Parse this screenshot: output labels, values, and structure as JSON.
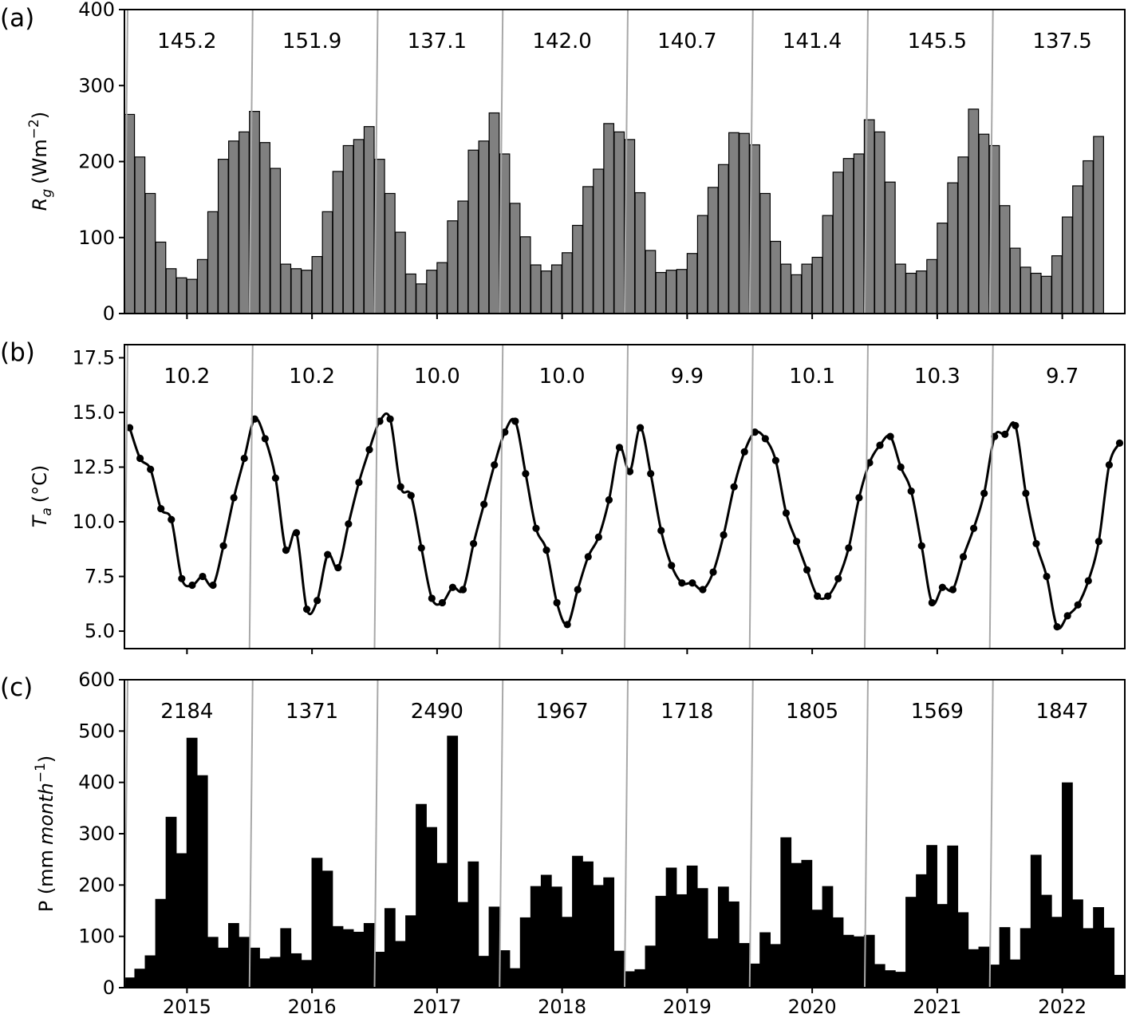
{
  "chart_data": [
    {
      "type": "bar",
      "panel_label": "(a)",
      "ylabel_main": "R",
      "ylabel_sub": "g",
      "ylabel_unit": "(Wm",
      "ylabel_sup": "−2",
      "ylabel_close": ")",
      "ylim": [
        0,
        400
      ],
      "yticks": [
        0,
        100,
        200,
        300,
        400
      ],
      "bar_color": "#808080",
      "start_year": 2014.5,
      "values": [
        262,
        206,
        158,
        94,
        59,
        47,
        45,
        71,
        134,
        203,
        227,
        239,
        266,
        225,
        191,
        65,
        59,
        57,
        75,
        134,
        187,
        221,
        229,
        246,
        203,
        158,
        107,
        52,
        39,
        57,
        67,
        122,
        148,
        215,
        227,
        264,
        210,
        145,
        101,
        64,
        56,
        64,
        80,
        116,
        167,
        190,
        250,
        239,
        229,
        159,
        83,
        54,
        57,
        58,
        79,
        129,
        166,
        196,
        238,
        237,
        222,
        158,
        95,
        65,
        51,
        65,
        74,
        129,
        186,
        204,
        210,
        255,
        239,
        173,
        65,
        53,
        56,
        71,
        119,
        172,
        206,
        269,
        236,
        221,
        142,
        86,
        61,
        53,
        49,
        76,
        127,
        168,
        201,
        233
      ],
      "annotations": [
        "145.2",
        "151.9",
        "137.1",
        "142.0",
        "140.7",
        "141.4",
        "145.5",
        "137.5"
      ]
    },
    {
      "type": "line",
      "panel_label": "(b)",
      "ylabel_main": "T",
      "ylabel_sub": "a",
      "ylabel_unit": "(°C)",
      "ylim": [
        4.2,
        18.1
      ],
      "yticks": [
        5.0,
        7.5,
        10.0,
        12.5,
        15.0,
        17.5
      ],
      "ytick_labels": [
        "5.0",
        "7.5",
        "10.0",
        "12.5",
        "15.0",
        "17.5"
      ],
      "line_color": "#000000",
      "start_year": 2014.5,
      "values": [
        14.3,
        12.9,
        12.4,
        10.6,
        10.1,
        7.4,
        7.1,
        7.5,
        7.1,
        8.9,
        11.1,
        12.9,
        14.7,
        13.8,
        12.0,
        8.7,
        9.5,
        6.0,
        6.4,
        8.5,
        7.9,
        9.9,
        11.8,
        13.3,
        14.6,
        14.7,
        11.6,
        11.2,
        8.8,
        6.5,
        6.3,
        7.0,
        6.9,
        9.0,
        10.8,
        12.6,
        14.1,
        14.6,
        12.2,
        9.7,
        8.7,
        6.3,
        5.3,
        6.9,
        8.4,
        9.3,
        11.0,
        13.4,
        12.3,
        14.3,
        12.2,
        9.6,
        8.0,
        7.2,
        7.2,
        6.9,
        7.7,
        9.4,
        11.6,
        13.2,
        14.1,
        13.8,
        12.8,
        10.4,
        9.1,
        7.8,
        6.6,
        6.6,
        7.4,
        8.8,
        11.1,
        12.7,
        13.5,
        13.9,
        12.5,
        11.4,
        8.9,
        6.3,
        7.0,
        6.9,
        8.4,
        9.7,
        11.3,
        13.9,
        14.0,
        14.4,
        11.3,
        9.0,
        7.5,
        5.2,
        5.7,
        6.2,
        7.3,
        9.1,
        12.6,
        13.6
      ],
      "annotations": [
        "10.2",
        "10.2",
        "10.0",
        "10.0",
        "9.9",
        "10.1",
        "10.3",
        "9.7"
      ]
    },
    {
      "type": "bar",
      "panel_label": "(c)",
      "ylabel_main": "P (mm",
      "ylabel_italic": "month",
      "ylabel_sup": "−1",
      "ylabel_close": ")",
      "ylim": [
        0,
        600
      ],
      "yticks": [
        0,
        100,
        200,
        300,
        400,
        500,
        600
      ],
      "bar_color": "#000000",
      "start_year": 2014.5,
      "values": [
        19,
        36,
        62,
        172,
        332,
        261,
        486,
        413,
        98,
        77,
        125,
        98,
        77,
        56,
        59,
        115,
        66,
        53,
        252,
        227,
        119,
        113,
        108,
        125,
        69,
        154,
        90,
        140,
        357,
        312,
        242,
        490,
        166,
        245,
        61,
        157,
        72,
        37,
        136,
        197,
        219,
        196,
        137,
        256,
        245,
        199,
        214,
        71,
        31,
        35,
        81,
        178,
        233,
        181,
        237,
        193,
        95,
        196,
        167,
        86,
        46,
        107,
        84,
        292,
        242,
        248,
        151,
        197,
        136,
        102,
        99,
        102,
        45,
        33,
        30,
        176,
        220,
        277,
        162,
        276,
        146,
        74,
        79,
        44,
        117,
        54,
        115,
        258,
        180,
        137,
        399,
        171,
        115,
        156,
        116,
        24
      ],
      "annotations": [
        "2184",
        "1371",
        "2490",
        "1967",
        "1718",
        "1805",
        "1569",
        "1847"
      ]
    }
  ],
  "xaxis": {
    "range": [
      2014.5,
      2022.5
    ],
    "ticks": [
      2015,
      2016,
      2017,
      2018,
      2019,
      2020,
      2021,
      2022
    ],
    "labels": [
      "2015",
      "2016",
      "2017",
      "2018",
      "2019",
      "2020",
      "2021",
      "2022"
    ]
  },
  "separator_color": "#a8a8a8"
}
